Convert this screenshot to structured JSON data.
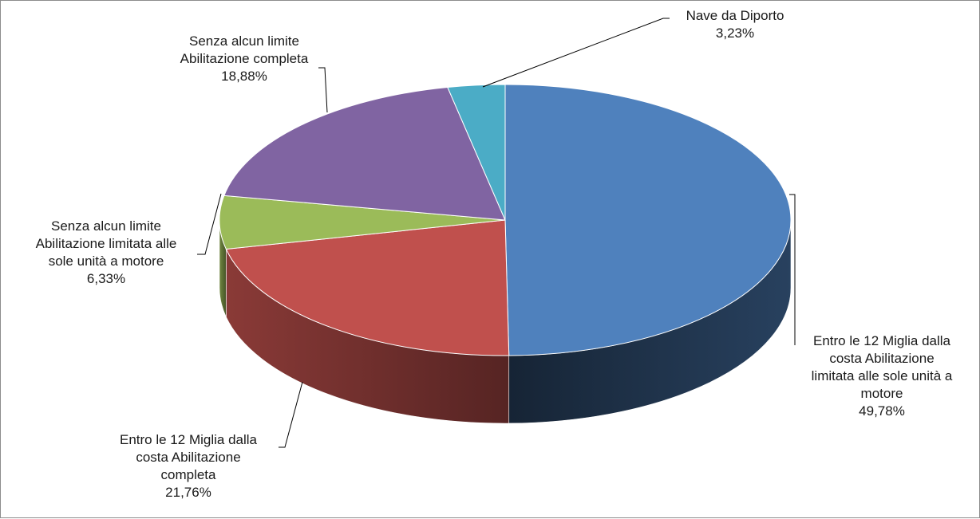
{
  "chart_data": {
    "type": "pie",
    "title": "",
    "start_angle_deg": 0,
    "slices": [
      {
        "name": "Entro le 12 Miglia dalla costa Abilitazione limitata alle sole unità a motore",
        "label_lines": [
          "Entro le 12 Miglia dalla",
          "costa Abilitazione",
          "limitata alle sole unità a",
          "motore"
        ],
        "value": 49.78,
        "value_label": "49,78%",
        "color": "#4f81bd"
      },
      {
        "name": "Entro le 12 Miglia dalla costa Abilitazione completa",
        "label_lines": [
          "Entro le 12 Miglia dalla",
          "costa Abilitazione",
          "completa"
        ],
        "value": 21.76,
        "value_label": "21,76%",
        "color": "#c0504d"
      },
      {
        "name": "Senza alcun limite Abilitazione limitata alle sole unità a motore",
        "label_lines": [
          "Senza alcun limite",
          "Abilitazione limitata alle",
          "sole unità a motore"
        ],
        "value": 6.33,
        "value_label": "6,33%",
        "color": "#9bbb59"
      },
      {
        "name": "Senza alcun limite Abilitazione completa",
        "label_lines": [
          "Senza alcun limite",
          "Abilitazione completa"
        ],
        "value": 18.88,
        "value_label": "18,88%",
        "color": "#8064a2"
      },
      {
        "name": "Nave da Diporto",
        "label_lines": [
          "Nave da Diporto"
        ],
        "value": 3.23,
        "value_label": "3,23%",
        "color": "#4bacc6"
      }
    ]
  }
}
